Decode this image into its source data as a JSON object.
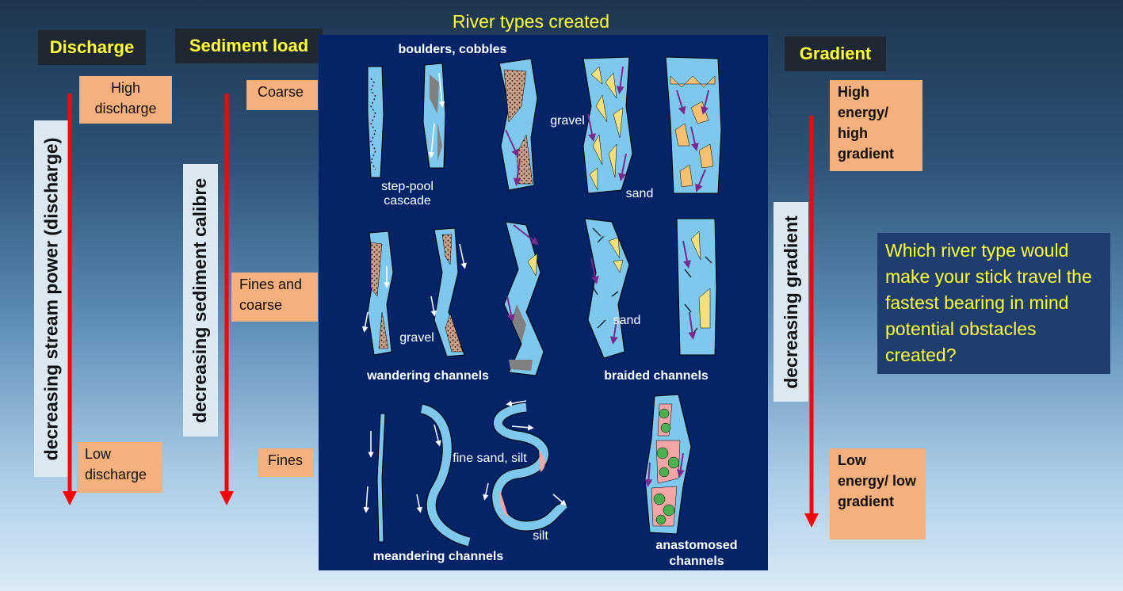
{
  "title": "River types created",
  "headers": {
    "discharge": "Discharge",
    "sediment_load": "Sediment load",
    "gradient": "Gradient"
  },
  "discharge": {
    "high": "High discharge",
    "low": "Low discharge",
    "axis_label": "decreasing stream power (discharge)"
  },
  "sediment": {
    "coarse": "Coarse",
    "fines_and_coarse": "Fines and coarse",
    "fines": "Fines",
    "axis_label": "decreasing sediment calibre"
  },
  "gradient": {
    "high": "High energy/ high gradient",
    "low": "Low energy/ low gradient",
    "axis_label": "decreasing gradient"
  },
  "question": "Which river type would make your stick travel the fastest bearing in mind potential obstacles created?",
  "diagram_labels": {
    "boulders": "boulders, cobbles",
    "step_pool": "step-pool cascade",
    "gravel_top": "gravel",
    "sand_top": "sand",
    "gravel_mid": "gravel",
    "sand_mid": "sand",
    "wandering": "wandering channels",
    "braided": "braided channels",
    "fine_sand_silt": "fine sand, silt",
    "silt": "silt",
    "meandering": "meandering channels",
    "anastomosed": "anastomosed channels"
  },
  "colors": {
    "arrow": "#ff0000",
    "channel": "#7ec8ee",
    "panel_bg": "#052468",
    "box": "#f5b07e",
    "header_text": "#ffff33"
  }
}
